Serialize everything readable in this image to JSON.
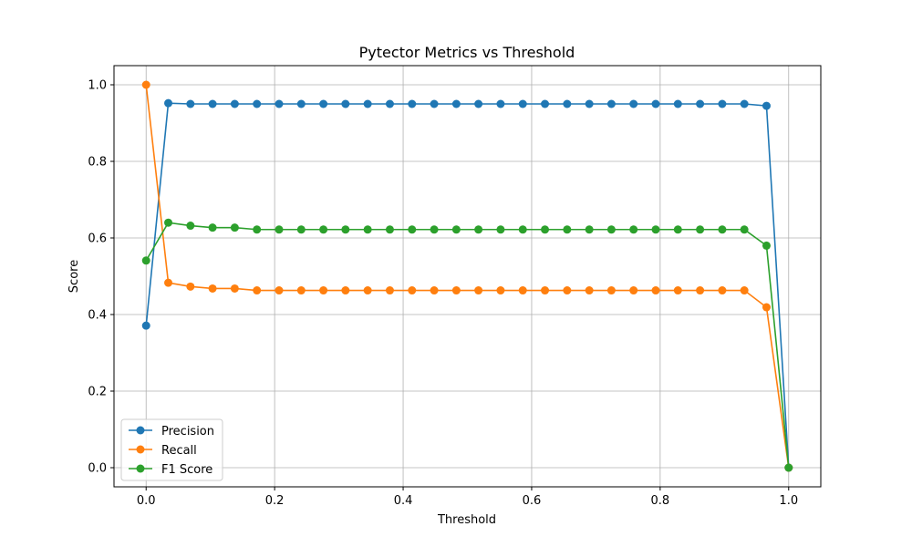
{
  "chart_data": {
    "type": "line",
    "title": "Pytector Metrics vs Threshold",
    "xlabel": "Threshold",
    "ylabel": "Score",
    "xlim": [
      -0.05,
      1.05
    ],
    "ylim": [
      -0.05,
      1.05
    ],
    "xticks": [
      0.0,
      0.2,
      0.4,
      0.6,
      0.8,
      1.0
    ],
    "xtick_labels": [
      "0.0",
      "0.2",
      "0.4",
      "0.6",
      "0.8",
      "1.0"
    ],
    "yticks": [
      0.0,
      0.2,
      0.4,
      0.6,
      0.8,
      1.0
    ],
    "ytick_labels": [
      "0.0",
      "0.2",
      "0.4",
      "0.6",
      "0.8",
      "1.0"
    ],
    "grid": true,
    "legend_position": "lower-left",
    "marker": "circle",
    "x": [
      0.0,
      0.0345,
      0.069,
      0.1034,
      0.1379,
      0.1724,
      0.2069,
      0.2414,
      0.2759,
      0.3103,
      0.3448,
      0.3793,
      0.4138,
      0.4483,
      0.4828,
      0.5172,
      0.5517,
      0.5862,
      0.6207,
      0.6552,
      0.6897,
      0.7241,
      0.7586,
      0.7931,
      0.8276,
      0.8621,
      0.8966,
      0.931,
      0.9655,
      1.0
    ],
    "series": [
      {
        "name": "Precision",
        "color": "#1f77b4",
        "values": [
          0.371,
          0.952,
          0.95,
          0.95,
          0.95,
          0.95,
          0.95,
          0.95,
          0.95,
          0.95,
          0.95,
          0.95,
          0.95,
          0.95,
          0.95,
          0.95,
          0.95,
          0.95,
          0.95,
          0.95,
          0.95,
          0.95,
          0.95,
          0.95,
          0.95,
          0.95,
          0.95,
          0.95,
          0.945,
          0.0
        ]
      },
      {
        "name": "Recall",
        "color": "#ff7f0e",
        "values": [
          1.0,
          0.483,
          0.473,
          0.468,
          0.468,
          0.463,
          0.463,
          0.463,
          0.463,
          0.463,
          0.463,
          0.463,
          0.463,
          0.463,
          0.463,
          0.463,
          0.463,
          0.463,
          0.463,
          0.463,
          0.463,
          0.463,
          0.463,
          0.463,
          0.463,
          0.463,
          0.463,
          0.463,
          0.419,
          0.0
        ]
      },
      {
        "name": "F1 Score",
        "color": "#2ca02c",
        "values": [
          0.541,
          0.64,
          0.632,
          0.627,
          0.627,
          0.622,
          0.622,
          0.622,
          0.622,
          0.622,
          0.622,
          0.622,
          0.622,
          0.622,
          0.622,
          0.622,
          0.622,
          0.622,
          0.622,
          0.622,
          0.622,
          0.622,
          0.622,
          0.622,
          0.622,
          0.622,
          0.622,
          0.622,
          0.58,
          0.0
        ]
      }
    ]
  }
}
